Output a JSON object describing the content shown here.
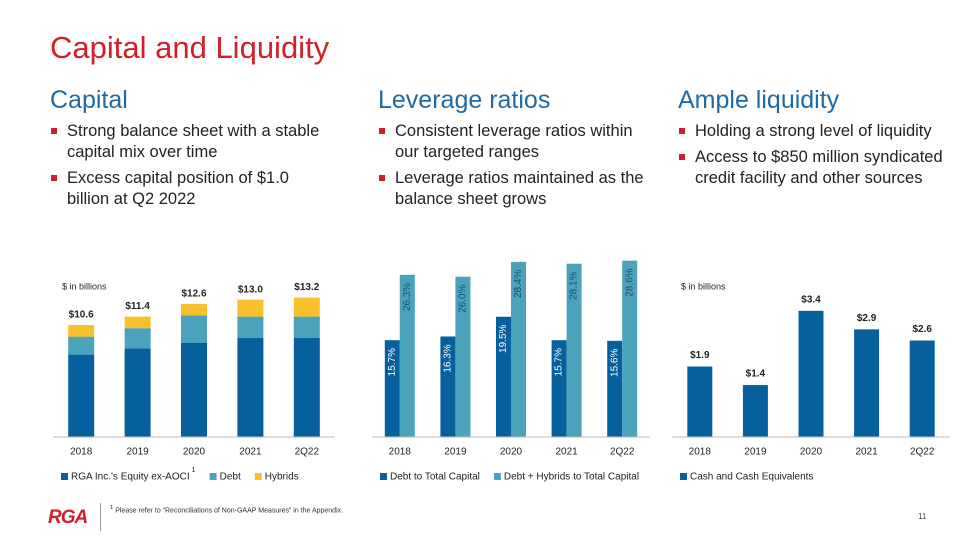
{
  "title": "Capital and Liquidity",
  "sections": [
    {
      "heading": "Capital",
      "bullets": [
        "Strong balance sheet with a stable capital mix over time",
        "Excess capital position of $1.0 billion at Q2 2022"
      ]
    },
    {
      "heading": "Leverage ratios",
      "bullets": [
        "Consistent leverage ratios within our targeted ranges",
        "Leverage ratios maintained as the balance sheet grows"
      ]
    },
    {
      "heading": "Ample liquidity",
      "bullets": [
        "Holding a strong level of liquidity",
        "Access to $850 million syndicated credit facility and other sources"
      ]
    }
  ],
  "chart_data": [
    {
      "type": "stacked_bar",
      "ylabel": "$ in billions",
      "categories": [
        "2018",
        "2019",
        "2020",
        "2021",
        "2Q22"
      ],
      "ylim": [
        0,
        16
      ],
      "series": [
        {
          "name": "RGA Inc.'s Equity ex-AOCI",
          "note": "1",
          "color": "#07609e",
          "values": [
            7.8,
            8.4,
            8.9,
            9.4,
            9.4
          ]
        },
        {
          "name": "Debt",
          "color": "#4aa3bb",
          "values": [
            1.7,
            1.9,
            2.6,
            2.0,
            2.0
          ]
        },
        {
          "name": "Hybrids",
          "color": "#f8c12c",
          "values": [
            1.1,
            1.1,
            1.1,
            1.6,
            1.8
          ]
        }
      ],
      "total_labels": [
        "$10.6",
        "$11.4",
        "$12.6",
        "$13.0",
        "$13.2"
      ]
    },
    {
      "type": "bar",
      "categories": [
        "2018",
        "2019",
        "2020",
        "2021",
        "2Q22"
      ],
      "ylim": [
        0,
        30
      ],
      "series": [
        {
          "name": "Debt to Total Capital",
          "color": "#07609e",
          "values": [
            15.7,
            16.3,
            19.5,
            15.7,
            15.6
          ],
          "value_labels": [
            "15.7%",
            "16.3%",
            "19.5%",
            "15.7%",
            "15.6%"
          ]
        },
        {
          "name": "Debt + Hybrids to Total Capital",
          "color": "#4aa3bb",
          "values": [
            26.3,
            26.0,
            28.4,
            28.1,
            28.6
          ],
          "value_labels": [
            "26.3%",
            "26.0%",
            "28.4%",
            "28.1%",
            "28.6%"
          ]
        }
      ]
    },
    {
      "type": "bar",
      "ylabel": "$ in billions",
      "categories": [
        "2018",
        "2019",
        "2020",
        "2021",
        "2Q22"
      ],
      "ylim": [
        0,
        4.5
      ],
      "series": [
        {
          "name": "Cash and Cash Equivalents",
          "color": "#07609e",
          "values": [
            1.9,
            1.4,
            3.4,
            2.9,
            2.6
          ],
          "value_labels": [
            "$1.9",
            "$1.4",
            "$3.4",
            "$2.9",
            "$2.6"
          ]
        }
      ]
    }
  ],
  "footnote": {
    "marker": "1",
    "text": "Please refer to “Reconciliations of Non-GAAP Measures” in the Appendix."
  },
  "logo": "RGA",
  "page_number": "11"
}
